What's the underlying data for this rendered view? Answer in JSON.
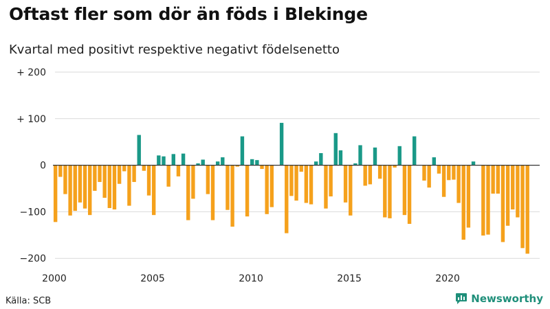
{
  "title": "Oftast fler som dör än föds i Blekinge",
  "subtitle": "Kvartal med positivt respektive negativt födelsenetto",
  "source": "Källa: SCB",
  "brand": "Newsworthy",
  "colors": {
    "positive": "#1a9988",
    "negative": "#f5a11c",
    "grid": "#d9d9d9",
    "zero_line": "#333333"
  },
  "chart_data": {
    "type": "bar",
    "xlim": [
      2000,
      2024.75
    ],
    "ylim": [
      -210,
      200
    ],
    "y_ticks": [
      {
        "value": 200,
        "label": "+ 200"
      },
      {
        "value": 100,
        "label": "+ 100"
      },
      {
        "value": 0,
        "label": "0"
      },
      {
        "value": -100,
        "label": "−100"
      },
      {
        "value": -200,
        "label": "−200"
      }
    ],
    "x_ticks": [
      {
        "value": 2000,
        "label": "2000"
      },
      {
        "value": 2005,
        "label": "2005"
      },
      {
        "value": 2010,
        "label": "2010"
      },
      {
        "value": 2015,
        "label": "2015"
      },
      {
        "value": 2020,
        "label": "2020"
      }
    ],
    "start_year": 2000,
    "values": [
      -122,
      -25,
      -62,
      -108,
      -98,
      -80,
      -93,
      -107,
      -55,
      -36,
      -70,
      -92,
      -95,
      -40,
      -13,
      -87,
      -36,
      65,
      -12,
      -65,
      -107,
      21,
      19,
      -46,
      24,
      -24,
      25,
      -118,
      -72,
      4,
      12,
      -62,
      -118,
      8,
      17,
      -96,
      -132,
      -3,
      62,
      -110,
      13,
      11,
      -8,
      -105,
      -90,
      0,
      91,
      -146,
      -66,
      -76,
      -14,
      -81,
      -84,
      8,
      26,
      -93,
      -67,
      69,
      32,
      -80,
      -108,
      4,
      43,
      -44,
      -41,
      38,
      -29,
      -112,
      -114,
      -5,
      41,
      -107,
      -126,
      62,
      0,
      -33,
      -48,
      17,
      -18,
      -68,
      -32,
      -31,
      -81,
      -160,
      -134,
      8,
      0,
      -151,
      -149,
      -61,
      -61,
      -165,
      -130,
      -95,
      -112,
      -178,
      -190
    ]
  }
}
